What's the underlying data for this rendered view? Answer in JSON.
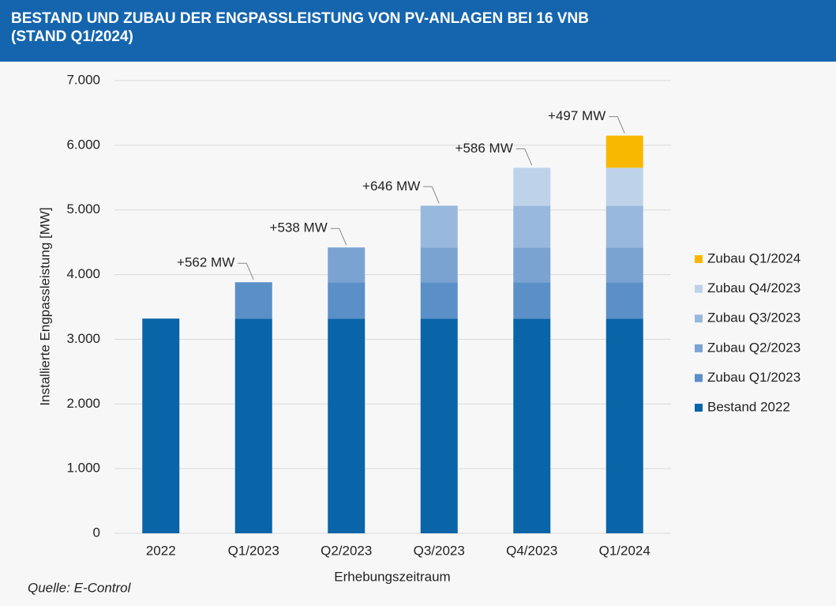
{
  "chart_data": {
    "type": "stacked_bar",
    "title": "BESTAND UND ZUBAU DER ENGPASSLEISTUNG VON PV-ANLAGEN BEI 16 VNB\n(STAND Q1/2024)",
    "x_label": "Erhebungszeitraum",
    "y_label": "Installierte Engpassleistung [MW]",
    "source": "Quelle: E-Control",
    "categories": [
      "2022",
      "Q1/2023",
      "Q2/2023",
      "Q3/2023",
      "Q4/2023",
      "Q1/2024"
    ],
    "series": [
      {
        "name": "Bestand 2022",
        "color": "#0a64a8",
        "values": [
          3320,
          3320,
          3320,
          3320,
          3320,
          3320
        ]
      },
      {
        "name": "Zubau Q1/2023",
        "color": "#5b8fc8",
        "values": [
          null,
          562,
          562,
          562,
          562,
          562
        ],
        "value_labels": [
          null,
          "+562 MW",
          null,
          null,
          null,
          null
        ]
      },
      {
        "name": "Zubau Q2/2023",
        "color": "#7aa3d2",
        "values": [
          null,
          null,
          538,
          538,
          538,
          538
        ],
        "value_labels": [
          null,
          null,
          "+538 MW",
          null,
          null,
          null
        ]
      },
      {
        "name": "Zubau Q3/2023",
        "color": "#99b8dd",
        "values": [
          null,
          null,
          null,
          646,
          646,
          646
        ],
        "value_labels": [
          null,
          null,
          null,
          "+646 MW",
          null,
          null
        ]
      },
      {
        "name": "Zubau Q4/2023",
        "color": "#bed3ea",
        "values": [
          null,
          null,
          null,
          null,
          586,
          586
        ],
        "value_labels": [
          null,
          null,
          null,
          null,
          "+586 MW",
          null
        ]
      },
      {
        "name": "Zubau Q1/2024",
        "color": "#f9b800",
        "values": [
          null,
          null,
          null,
          null,
          null,
          497
        ],
        "value_labels": [
          null,
          null,
          null,
          null,
          null,
          "+497 MW"
        ]
      }
    ],
    "ylim": [
      0,
      7000
    ],
    "yticks": [
      0,
      {
        "value": 1000,
        "label": "1.000"
      },
      {
        "value": 2000,
        "label": "2.000"
      },
      {
        "value": 3000,
        "label": "3.000"
      },
      {
        "value": 4000,
        "label": "4.000"
      },
      {
        "value": 5000,
        "label": "5.000"
      },
      {
        "value": 6000,
        "label": "6.000"
      },
      {
        "value": 7000,
        "label": "7.000"
      }
    ],
    "grid": true,
    "legend": "right"
  }
}
